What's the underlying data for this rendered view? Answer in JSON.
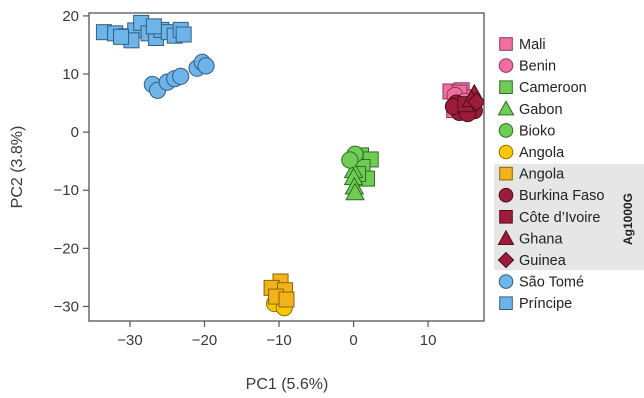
{
  "chart_data": {
    "type": "scatter",
    "xlabel": "PC1 (5.6%)",
    "ylabel": "PC2 (3.8%)",
    "xlim": [
      -35.5,
      17.5
    ],
    "ylim": [
      -32.5,
      20.5
    ],
    "xticks": [
      -30,
      -20,
      -10,
      0,
      10
    ],
    "yticks": [
      20,
      10,
      0,
      -10,
      -20,
      -30
    ],
    "tick_labels": {
      "x": [
        "−30",
        "−20",
        "−10",
        "0",
        "10"
      ],
      "y": [
        "20",
        "10",
        "0",
        "−10",
        "−20",
        "−30"
      ]
    },
    "grid": false,
    "legend_position": "right",
    "legend_group_label": "Ag1000G",
    "series": [
      {
        "name": "Mali",
        "marker": "square",
        "color": "#f06fa0",
        "stroke": "#8a3a5a",
        "points": [
          [
            13.0,
            7.0
          ],
          [
            14.5,
            7.2
          ],
          [
            15.5,
            6.0
          ],
          [
            13.8,
            5.6
          ],
          [
            14.6,
            4.8
          ],
          [
            15.2,
            4.2
          ],
          [
            13.5,
            3.8
          ],
          [
            14.2,
            6.8
          ]
        ]
      },
      {
        "name": "Benin",
        "marker": "circle",
        "color": "#f06fa0",
        "stroke": "#8a3a5a",
        "points": [
          [
            13.6,
            6.3
          ],
          [
            14.9,
            5.3
          ]
        ]
      },
      {
        "name": "Cameroon",
        "marker": "square",
        "color": "#6fcc55",
        "stroke": "#2e6e22",
        "points": [
          [
            1.0,
            -4.0
          ],
          [
            2.3,
            -4.7
          ],
          [
            1.2,
            -6.0
          ],
          [
            1.8,
            -8.0
          ],
          [
            0.6,
            -7.2
          ]
        ]
      },
      {
        "name": "Gabon",
        "marker": "triangle",
        "color": "#6fcc55",
        "stroke": "#2e6e22",
        "points": [
          [
            0.0,
            -6.6
          ],
          [
            0.0,
            -7.8
          ],
          [
            0.1,
            -9.4
          ],
          [
            0.2,
            -10.4
          ]
        ]
      },
      {
        "name": "Bioko",
        "marker": "circle",
        "color": "#6fcc55",
        "stroke": "#2e6e22",
        "points": [
          [
            0.2,
            -3.8
          ],
          [
            -0.5,
            -4.8
          ]
        ]
      },
      {
        "name": "Angola",
        "marker": "circle",
        "color": "#f7c800",
        "stroke": "#8c7000",
        "points": [
          [
            -10.0,
            -28.0
          ],
          [
            -9.5,
            -29.0
          ],
          [
            -10.6,
            -29.5
          ],
          [
            -9.3,
            -30.2
          ]
        ]
      },
      {
        "name": "Angola",
        "marker": "square",
        "color": "#f2b21c",
        "stroke": "#8c6400",
        "points": [
          [
            -9.8,
            -25.7
          ],
          [
            -11.0,
            -26.8
          ],
          [
            -9.2,
            -27.2
          ],
          [
            -10.4,
            -28.3
          ],
          [
            -9.0,
            -28.8
          ]
        ]
      },
      {
        "name": "Burkina Faso",
        "marker": "circle",
        "color": "#9c1c3a",
        "stroke": "#4e0c1c",
        "points": [
          [
            13.8,
            5.0
          ],
          [
            14.8,
            4.2
          ],
          [
            15.8,
            4.6
          ],
          [
            14.2,
            3.4
          ],
          [
            16.2,
            3.7
          ],
          [
            13.4,
            4.4
          ],
          [
            15.3,
            3.2
          ]
        ]
      },
      {
        "name": "Côte d’Ivoire",
        "marker": "square",
        "color": "#9c1c3a",
        "stroke": "#4e0c1c",
        "points": [
          [
            15.0,
            4.8
          ]
        ]
      },
      {
        "name": "Ghana",
        "marker": "triangle",
        "color": "#9c1c3a",
        "stroke": "#4e0c1c",
        "points": [
          [
            16.2,
            6.6
          ],
          [
            15.8,
            5.6
          ]
        ]
      },
      {
        "name": "Guinea",
        "marker": "diamond",
        "color": "#9c1c3a",
        "stroke": "#4e0c1c",
        "points": [
          [
            16.5,
            5.2
          ]
        ]
      },
      {
        "name": "São Tomé",
        "marker": "circle",
        "color": "#6fb4e8",
        "stroke": "#2e5f86",
        "points": [
          [
            -27.0,
            8.2
          ],
          [
            -26.3,
            7.2
          ],
          [
            -25.0,
            8.6
          ],
          [
            -24.0,
            9.2
          ],
          [
            -23.2,
            9.6
          ],
          [
            -21.0,
            11.0
          ],
          [
            -20.3,
            12.0
          ],
          [
            -19.8,
            11.4
          ]
        ]
      },
      {
        "name": "Príncipe",
        "marker": "square",
        "color": "#6fb4e8",
        "stroke": "#2e5f86",
        "points": [
          [
            -33.5,
            17.2
          ],
          [
            -32.0,
            17.0
          ],
          [
            -30.5,
            16.5
          ],
          [
            -29.3,
            17.5
          ],
          [
            -28.5,
            18.8
          ],
          [
            -27.5,
            17.0
          ],
          [
            -26.5,
            16.2
          ],
          [
            -25.8,
            17.6
          ],
          [
            -24.8,
            17.2
          ],
          [
            -24.0,
            16.6
          ],
          [
            -23.2,
            17.6
          ],
          [
            -29.8,
            15.8
          ],
          [
            -31.2,
            16.4
          ],
          [
            -26.8,
            18.2
          ],
          [
            -22.8,
            16.8
          ]
        ]
      }
    ]
  }
}
